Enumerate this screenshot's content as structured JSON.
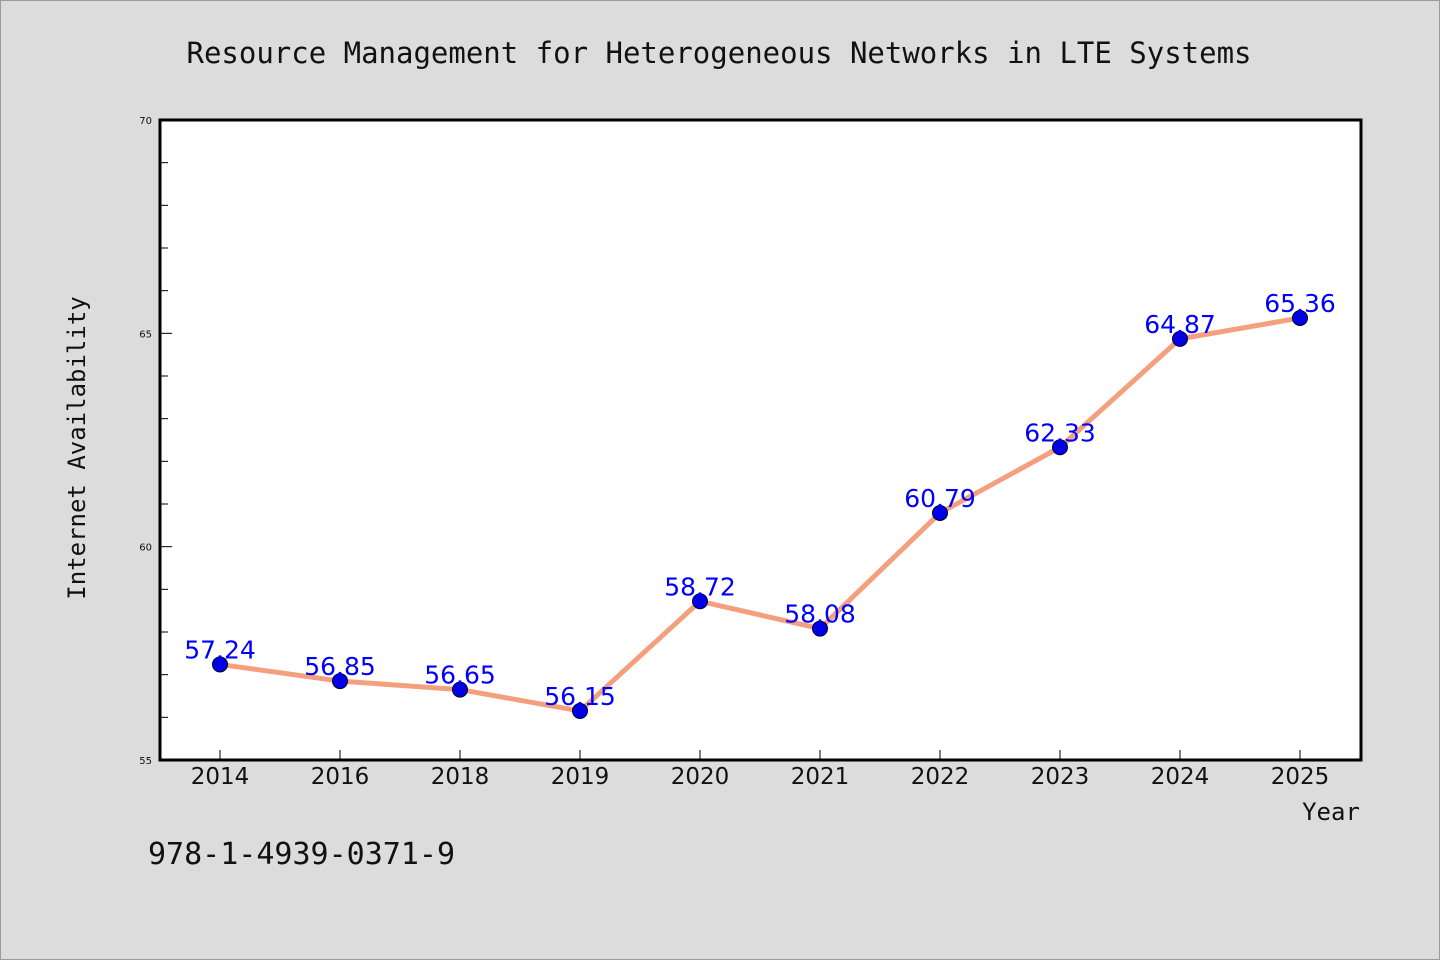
{
  "chart_data": {
    "type": "line",
    "title": "Resource Management for Heterogeneous Networks in LTE Systems",
    "xlabel": "Year",
    "ylabel": "Internet Availability",
    "categories": [
      "2014",
      "2016",
      "2018",
      "2019",
      "2020",
      "2021",
      "2022",
      "2023",
      "2024",
      "2025"
    ],
    "series": [
      {
        "values": [
          57.24,
          56.85,
          56.65,
          56.15,
          58.72,
          58.08,
          60.79,
          62.33,
          64.87,
          65.36
        ],
        "labels": [
          "57.24",
          "56.85",
          "56.65",
          "56.15",
          "58.72",
          "58.08",
          "60.79",
          "62.33",
          "64.87",
          "65.36"
        ]
      }
    ],
    "ylim": [
      55,
      70
    ],
    "yticks": [
      "55",
      "60",
      "65",
      "70"
    ],
    "ytick_values": [
      55,
      60,
      65,
      70
    ],
    "grid": false,
    "legend": "none",
    "line_color": "#f4a07e",
    "marker_color": "#0000e6",
    "label_color": "#0000ff"
  },
  "footer": {
    "isbn": "978-1-4939-0371-9"
  }
}
